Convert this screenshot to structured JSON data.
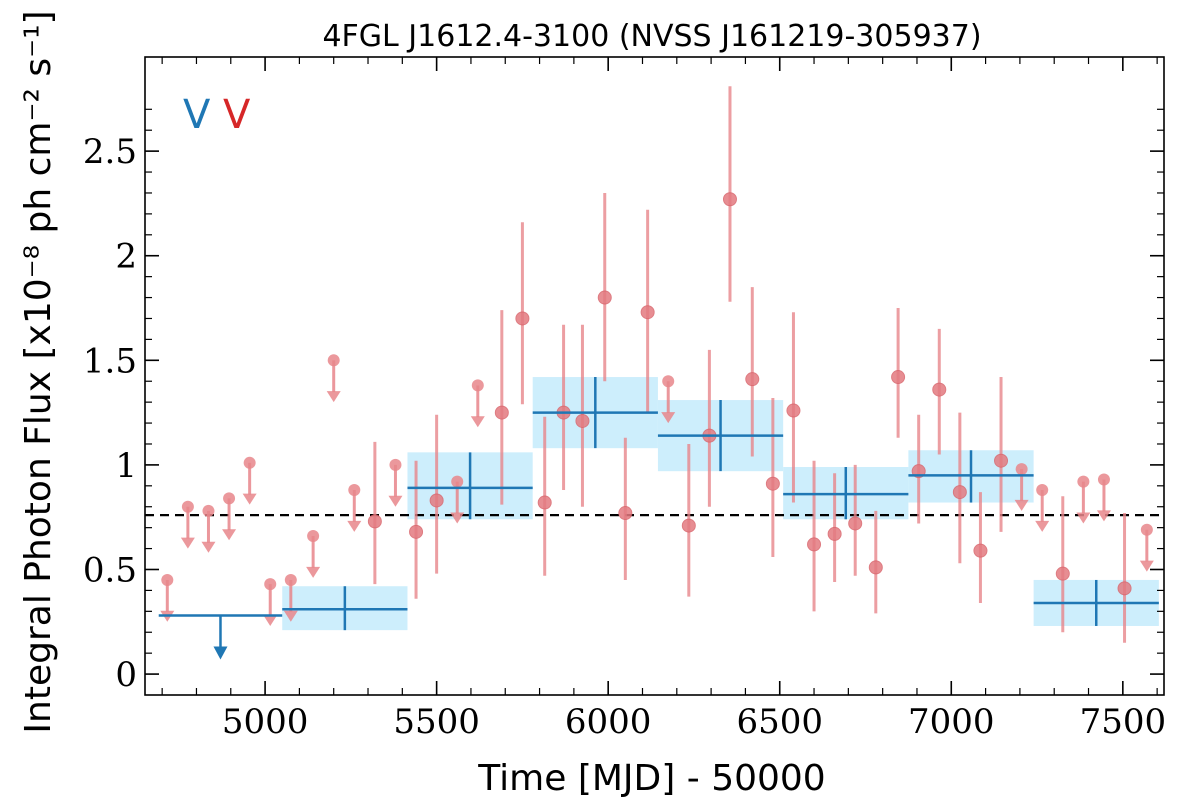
{
  "chart_data": {
    "type": "scatter",
    "title": "4FGL J1612.4-3100 (NVSS J161219-305937)",
    "xlabel": "Time [MJD] - 50000",
    "ylabel": "Integral Photon Flux [x10⁻⁸ ph cm⁻² s⁻¹]",
    "xlim": [
      4650,
      7620
    ],
    "ylim": [
      -0.1,
      2.95
    ],
    "xticks": [
      5000,
      5500,
      6000,
      6500,
      7000,
      7500
    ],
    "yticks": [
      0,
      0.5,
      1,
      1.5,
      2,
      2.5
    ],
    "ytick_labels": [
      "0",
      "0.5",
      "1",
      "1.5",
      "2",
      "2.5"
    ],
    "reference_line": {
      "y": 0.76,
      "style": "dashed",
      "color": "#000000"
    },
    "legend": {
      "position": "top-left",
      "entries": [
        {
          "text": "V",
          "color": "#1f77b4"
        },
        {
          "text": "V",
          "color": "#d62728"
        }
      ]
    },
    "series": [
      {
        "color": "#1f77b4",
        "band_color": "#cdeefc",
        "bins": [
          {
            "x0": 4690,
            "x1": 5050,
            "y": 0.28,
            "upper_limit": true,
            "ul_x": 4870,
            "ul_tip": 0.07
          },
          {
            "x0": 5050,
            "x1": 5415,
            "y": 0.31,
            "ylo": 0.21,
            "yhi": 0.42
          },
          {
            "x0": 5415,
            "x1": 5780,
            "y": 0.89,
            "ylo": 0.74,
            "yhi": 1.06
          },
          {
            "x0": 5780,
            "x1": 6145,
            "y": 1.25,
            "ylo": 1.08,
            "yhi": 1.42
          },
          {
            "x0": 6145,
            "x1": 6510,
            "y": 1.14,
            "ylo": 0.97,
            "yhi": 1.31
          },
          {
            "x0": 6510,
            "x1": 6875,
            "y": 0.86,
            "ylo": 0.74,
            "yhi": 0.99
          },
          {
            "x0": 6875,
            "x1": 7240,
            "y": 0.95,
            "ylo": 0.82,
            "yhi": 1.07
          },
          {
            "x0": 7240,
            "x1": 7605,
            "y": 0.34,
            "ylo": 0.23,
            "yhi": 0.45
          }
        ]
      },
      {
        "color": "#e8868b",
        "points": [
          {
            "x": 4715,
            "y": 0.45,
            "ul": true,
            "tip": 0.25
          },
          {
            "x": 4775,
            "y": 0.8,
            "ul": true,
            "tip": 0.6
          },
          {
            "x": 4835,
            "y": 0.78,
            "ul": true,
            "tip": 0.58
          },
          {
            "x": 4895,
            "y": 0.84,
            "ul": true,
            "tip": 0.64
          },
          {
            "x": 4955,
            "y": 1.01,
            "ul": true,
            "tip": 0.81
          },
          {
            "x": 5015,
            "y": 0.43,
            "ul": true,
            "tip": 0.23
          },
          {
            "x": 5075,
            "y": 0.45,
            "ul": true,
            "tip": 0.25
          },
          {
            "x": 5140,
            "y": 0.66,
            "ul": true,
            "tip": 0.46
          },
          {
            "x": 5200,
            "y": 1.5,
            "ul": true,
            "tip": 1.3
          },
          {
            "x": 5260,
            "y": 0.88,
            "ul": true,
            "tip": 0.68
          },
          {
            "x": 5320,
            "y": 0.73,
            "lo": 0.43,
            "hi": 1.11
          },
          {
            "x": 5380,
            "y": 1.0,
            "ul": true,
            "tip": 0.8
          },
          {
            "x": 5440,
            "y": 0.68,
            "lo": 0.36,
            "hi": 1.02
          },
          {
            "x": 5500,
            "y": 0.83,
            "lo": 0.48,
            "hi": 1.24
          },
          {
            "x": 5560,
            "y": 0.92,
            "ul": true,
            "tip": 0.72
          },
          {
            "x": 5620,
            "y": 1.38,
            "ul": true,
            "tip": 1.18
          },
          {
            "x": 5690,
            "y": 1.25,
            "lo": 0.81,
            "hi": 1.74
          },
          {
            "x": 5750,
            "y": 1.7,
            "lo": 1.29,
            "hi": 2.16
          },
          {
            "x": 5815,
            "y": 0.82,
            "lo": 0.47,
            "hi": 1.23
          },
          {
            "x": 5870,
            "y": 1.25,
            "lo": 0.88,
            "hi": 1.67
          },
          {
            "x": 5925,
            "y": 1.21,
            "lo": 0.8,
            "hi": 1.67
          },
          {
            "x": 5990,
            "y": 1.8,
            "lo": 1.4,
            "hi": 2.3
          },
          {
            "x": 6050,
            "y": 0.77,
            "lo": 0.45,
            "hi": 1.13
          },
          {
            "x": 6115,
            "y": 1.73,
            "lo": 1.25,
            "hi": 2.22
          },
          {
            "x": 6175,
            "y": 1.4,
            "ul": true,
            "tip": 1.2
          },
          {
            "x": 6235,
            "y": 0.71,
            "lo": 0.37,
            "hi": 1.1
          },
          {
            "x": 6295,
            "y": 1.14,
            "lo": 0.8,
            "hi": 1.55
          },
          {
            "x": 6355,
            "y": 2.27,
            "lo": 1.78,
            "hi": 2.81
          },
          {
            "x": 6420,
            "y": 1.41,
            "lo": 1.04,
            "hi": 1.85
          },
          {
            "x": 6480,
            "y": 0.91,
            "lo": 0.56,
            "hi": 1.32
          },
          {
            "x": 6540,
            "y": 1.26,
            "lo": 0.82,
            "hi": 1.73
          },
          {
            "x": 6600,
            "y": 0.62,
            "lo": 0.3,
            "hi": 1.02
          },
          {
            "x": 6660,
            "y": 0.67,
            "lo": 0.44,
            "hi": 0.96
          },
          {
            "x": 6720,
            "y": 0.72,
            "lo": 0.47,
            "hi": 1.0
          },
          {
            "x": 6780,
            "y": 0.51,
            "lo": 0.29,
            "hi": 0.78
          },
          {
            "x": 6845,
            "y": 1.42,
            "lo": 1.13,
            "hi": 1.75
          },
          {
            "x": 6905,
            "y": 0.97,
            "lo": 0.72,
            "hi": 1.24
          },
          {
            "x": 6965,
            "y": 1.36,
            "lo": 1.05,
            "hi": 1.65
          },
          {
            "x": 7025,
            "y": 0.87,
            "lo": 0.53,
            "hi": 1.25
          },
          {
            "x": 7085,
            "y": 0.59,
            "lo": 0.34,
            "hi": 0.87
          },
          {
            "x": 7145,
            "y": 1.02,
            "lo": 0.68,
            "hi": 1.42
          },
          {
            "x": 7205,
            "y": 0.98,
            "ul": true,
            "tip": 0.78
          },
          {
            "x": 7265,
            "y": 0.88,
            "ul": true,
            "tip": 0.68
          },
          {
            "x": 7325,
            "y": 0.48,
            "lo": 0.2,
            "hi": 0.85
          },
          {
            "x": 7385,
            "y": 0.92,
            "ul": true,
            "tip": 0.72
          },
          {
            "x": 7445,
            "y": 0.93,
            "ul": true,
            "tip": 0.73
          },
          {
            "x": 7505,
            "y": 0.41,
            "lo": 0.15,
            "hi": 0.77
          },
          {
            "x": 7570,
            "y": 0.69,
            "ul": true,
            "tip": 0.49
          }
        ]
      }
    ]
  }
}
